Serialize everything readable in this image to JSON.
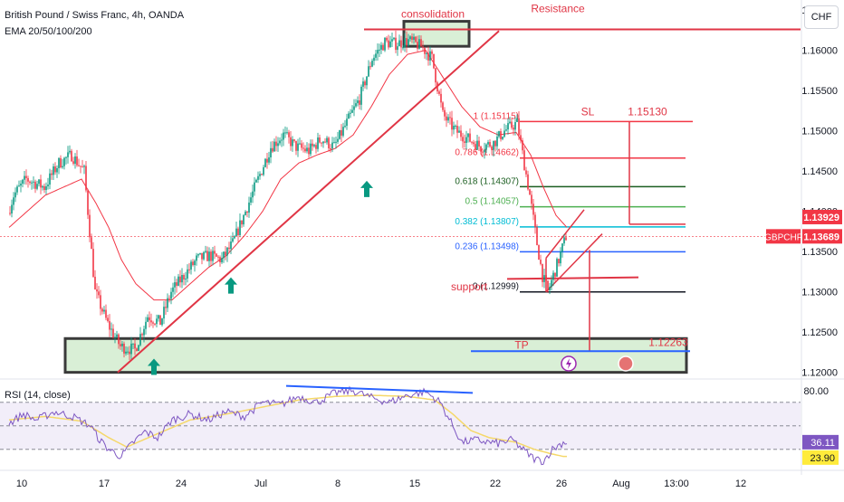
{
  "header": {
    "title": "British Pound / Swiss Franc, 4h, OANDA",
    "indicator": "EMA 20/50/100/200",
    "currency_button": "CHF",
    "rsi_label": "RSI (14, close)"
  },
  "colors": {
    "bull": "#089981",
    "bear": "#f23645",
    "ema": "#f23645",
    "annotation_red": "#e03545",
    "support_box_fill": "#d9efd6",
    "green_arrow": "#089981",
    "rsi_line": "#7e57c2",
    "rsi_ma": "#f5d86a",
    "rsi_band": "#ede7f6",
    "divergence_line": "#2962ff",
    "fib_1": "#f23645",
    "fib_0786": "#f23645",
    "fib_0618": "#1b5e20",
    "fib_05": "#4caf50",
    "fib_0382": "#00bcd4",
    "fib_0236": "#2962ff",
    "fib_0": "#131722"
  },
  "chart_data": [
    {
      "type": "candlestick",
      "title": "British Pound / Swiss Franc, 4h, OANDA",
      "ylim": [
        1.1194,
        1.1658
      ],
      "y_ticks": [
        "1.16500",
        "1.16000",
        "1.15500",
        "1.15000",
        "1.14500",
        "1.14000",
        "1.13500",
        "1.13000",
        "1.12500",
        "1.12000"
      ],
      "x_tick_labels": [
        "10",
        "17",
        "24",
        "Jul",
        "8",
        "15",
        "22",
        "26",
        "Aug",
        "13:00",
        "12"
      ],
      "price_path": [
        [
          0,
          1.1398
        ],
        [
          3,
          1.142
        ],
        [
          10,
          1.144
        ],
        [
          20,
          1.143
        ],
        [
          28,
          1.146
        ],
        [
          35,
          1.147
        ],
        [
          42,
          1.145
        ],
        [
          48,
          1.13
        ],
        [
          55,
          1.126
        ],
        [
          62,
          1.1232
        ],
        [
          70,
          1.1228
        ],
        [
          77,
          1.127
        ],
        [
          84,
          1.1262
        ],
        [
          90,
          1.13
        ],
        [
          97,
          1.132
        ],
        [
          104,
          1.134
        ],
        [
          111,
          1.1345
        ],
        [
          118,
          1.134
        ],
        [
          124,
          1.136
        ],
        [
          131,
          1.14
        ],
        [
          138,
          1.144
        ],
        [
          145,
          1.148
        ],
        [
          152,
          1.1495
        ],
        [
          159,
          1.148
        ],
        [
          166,
          1.1475
        ],
        [
          173,
          1.149
        ],
        [
          180,
          1.148
        ],
        [
          187,
          1.151
        ],
        [
          194,
          1.154
        ],
        [
          201,
          1.159
        ],
        [
          208,
          1.161
        ],
        [
          214,
          1.1608
        ],
        [
          221,
          1.1612
        ],
        [
          228,
          1.1605
        ],
        [
          234,
          1.159
        ],
        [
          240,
          1.152
        ],
        [
          247,
          1.15
        ],
        [
          254,
          1.149
        ],
        [
          261,
          1.148
        ],
        [
          268,
          1.1485
        ],
        [
          274,
          1.15
        ],
        [
          281,
          1.151
        ],
        [
          288,
          1.142
        ],
        [
          292,
          1.136
        ],
        [
          295,
          1.132
        ],
        [
          298,
          1.13
        ],
        [
          301,
          1.132
        ],
        [
          304,
          1.134
        ],
        [
          308,
          1.1369
        ]
      ],
      "ema_path": [
        [
          0,
          1.138
        ],
        [
          10,
          1.14
        ],
        [
          20,
          1.142
        ],
        [
          30,
          1.143
        ],
        [
          40,
          1.144
        ],
        [
          48,
          1.141
        ],
        [
          55,
          1.138
        ],
        [
          62,
          1.134
        ],
        [
          70,
          1.131
        ],
        [
          80,
          1.129
        ],
        [
          90,
          1.129
        ],
        [
          100,
          1.131
        ],
        [
          110,
          1.133
        ],
        [
          120,
          1.1345
        ],
        [
          130,
          1.137
        ],
        [
          140,
          1.14
        ],
        [
          150,
          1.144
        ],
        [
          160,
          1.146
        ],
        [
          170,
          1.147
        ],
        [
          180,
          1.1478
        ],
        [
          190,
          1.1495
        ],
        [
          200,
          1.153
        ],
        [
          210,
          1.157
        ],
        [
          220,
          1.1595
        ],
        [
          230,
          1.16
        ],
        [
          240,
          1.1565
        ],
        [
          250,
          1.153
        ],
        [
          260,
          1.1505
        ],
        [
          270,
          1.1495
        ],
        [
          280,
          1.1498
        ],
        [
          288,
          1.147
        ],
        [
          295,
          1.143
        ],
        [
          302,
          1.1395
        ],
        [
          308,
          1.138
        ]
      ],
      "current_price": "1.13689",
      "current_price_label": "GBPCHF",
      "marked_price": "1.13929",
      "fibonacci": [
        {
          "label": "1 (1.15115)",
          "value": 1.15115
        },
        {
          "label": "0.786 (1.14662)",
          "value": 1.14662
        },
        {
          "label": "0.618 (1.14307)",
          "value": 1.14307
        },
        {
          "label": "0.5 (1.14057)",
          "value": 1.14057
        },
        {
          "label": "0.382 (1.13807)",
          "value": 1.13807
        },
        {
          "label": "0.236 (1.13498)",
          "value": 1.13498
        },
        {
          "label": "0 (1.12999)",
          "value": 1.12999
        }
      ],
      "annotations": {
        "consolidation": "consolidation",
        "resistance": "Resistance",
        "resistance_value": 1.1626,
        "sl": "SL",
        "sl_price": "1.15130",
        "support": "support",
        "tp": "TP",
        "tp_price": "1.12263",
        "tp_value": 1.12263
      }
    },
    {
      "type": "line",
      "title": "RSI (14, close)",
      "ylim": [
        16,
        86
      ],
      "y_ticks": [
        "80.00"
      ],
      "levels": [
        70,
        50,
        30
      ],
      "current_value": "36.11",
      "ma_value": "23.90",
      "rsi_path": [
        [
          0,
          52
        ],
        [
          8,
          60
        ],
        [
          15,
          55
        ],
        [
          25,
          62
        ],
        [
          35,
          58
        ],
        [
          45,
          50
        ],
        [
          50,
          38
        ],
        [
          55,
          30
        ],
        [
          62,
          24
        ],
        [
          68,
          35
        ],
        [
          75,
          45
        ],
        [
          82,
          40
        ],
        [
          90,
          55
        ],
        [
          100,
          60
        ],
        [
          110,
          55
        ],
        [
          120,
          62
        ],
        [
          130,
          58
        ],
        [
          140,
          70
        ],
        [
          150,
          68
        ],
        [
          160,
          75
        ],
        [
          170,
          70
        ],
        [
          180,
          78
        ],
        [
          190,
          80
        ],
        [
          200,
          74
        ],
        [
          210,
          70
        ],
        [
          220,
          76
        ],
        [
          230,
          79
        ],
        [
          238,
          70
        ],
        [
          245,
          50
        ],
        [
          250,
          36
        ],
        [
          258,
          38
        ],
        [
          265,
          36
        ],
        [
          270,
          35
        ],
        [
          278,
          38
        ],
        [
          285,
          28
        ],
        [
          290,
          22
        ],
        [
          295,
          20
        ],
        [
          300,
          30
        ],
        [
          306,
          36
        ]
      ],
      "ma_path": [
        [
          0,
          55
        ],
        [
          20,
          58
        ],
        [
          40,
          54
        ],
        [
          55,
          40
        ],
        [
          65,
          32
        ],
        [
          80,
          42
        ],
        [
          100,
          55
        ],
        [
          120,
          60
        ],
        [
          140,
          66
        ],
        [
          160,
          72
        ],
        [
          180,
          75
        ],
        [
          200,
          76
        ],
        [
          220,
          75
        ],
        [
          235,
          72
        ],
        [
          245,
          60
        ],
        [
          255,
          46
        ],
        [
          265,
          40
        ],
        [
          280,
          36
        ],
        [
          290,
          30
        ],
        [
          300,
          26
        ],
        [
          306,
          24
        ]
      ]
    }
  ]
}
